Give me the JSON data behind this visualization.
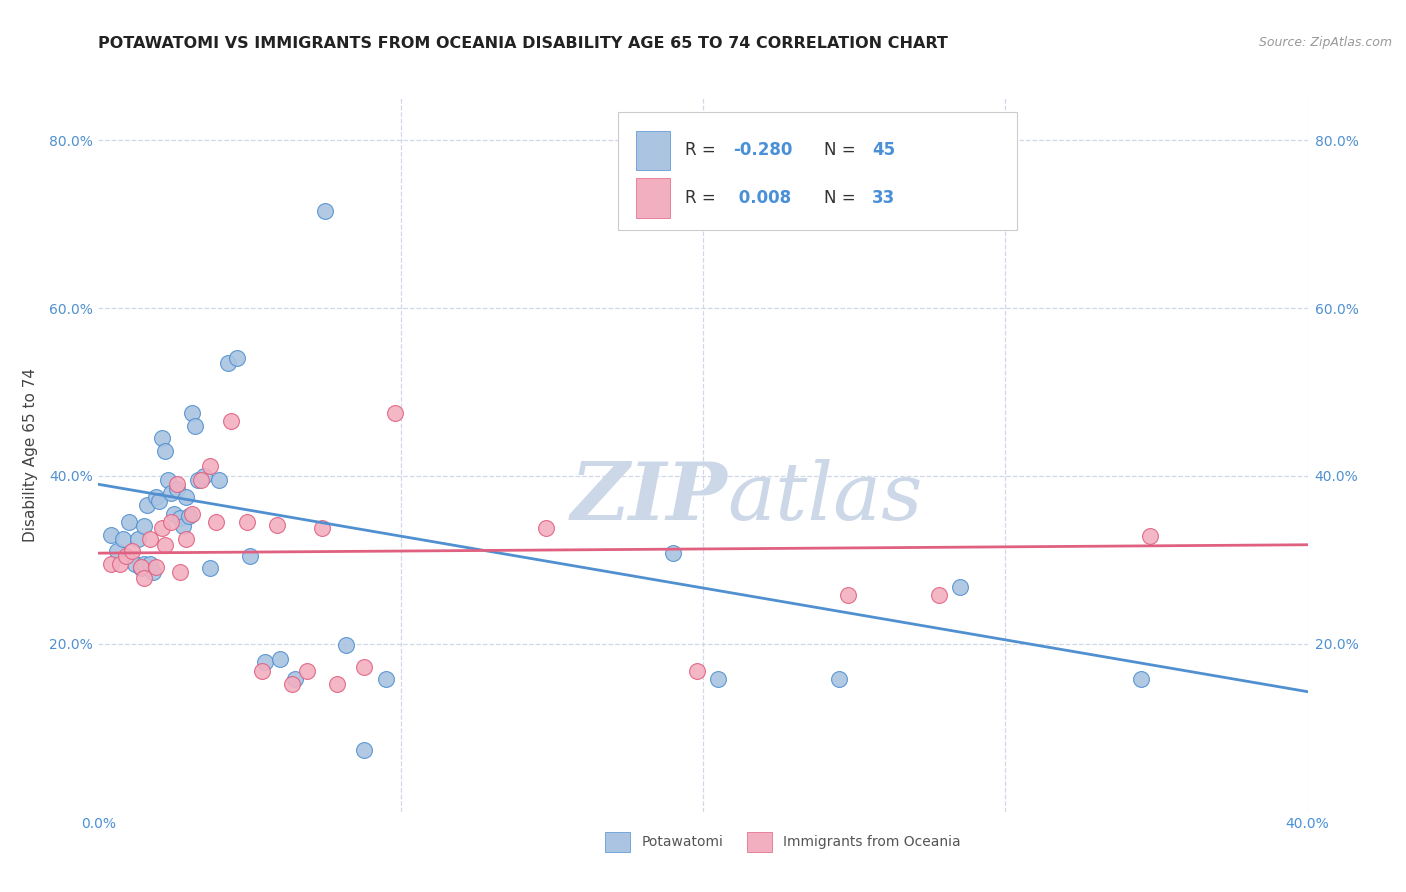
{
  "title": "POTAWATOMI VS IMMIGRANTS FROM OCEANIA DISABILITY AGE 65 TO 74 CORRELATION CHART",
  "source": "Source: ZipAtlas.com",
  "ylabel": "Disability Age 65 to 74",
  "xlim": [
    0.0,
    0.4
  ],
  "ylim": [
    0.0,
    0.85
  ],
  "color_blue": "#aac4e2",
  "color_pink": "#f2afc0",
  "line_blue": "#5090d0",
  "line_pink": "#e06080",
  "legend_text_color": "#4a90d9",
  "grid_color": "#d0d8e8",
  "watermark_color": "#ccd8e8",
  "potawatomi_x": [
    0.004,
    0.006,
    0.008,
    0.01,
    0.012,
    0.013,
    0.014,
    0.015,
    0.015,
    0.016,
    0.017,
    0.018,
    0.019,
    0.02,
    0.021,
    0.022,
    0.023,
    0.024,
    0.025,
    0.026,
    0.027,
    0.028,
    0.029,
    0.03,
    0.031,
    0.032,
    0.033,
    0.035,
    0.037,
    0.04,
    0.043,
    0.046,
    0.05,
    0.055,
    0.06,
    0.065,
    0.075,
    0.082,
    0.088,
    0.095,
    0.19,
    0.205,
    0.245,
    0.285,
    0.345
  ],
  "potawatomi_y": [
    0.33,
    0.31,
    0.325,
    0.345,
    0.295,
    0.325,
    0.29,
    0.34,
    0.295,
    0.365,
    0.295,
    0.285,
    0.375,
    0.37,
    0.445,
    0.43,
    0.395,
    0.38,
    0.355,
    0.385,
    0.35,
    0.34,
    0.375,
    0.352,
    0.475,
    0.46,
    0.395,
    0.4,
    0.29,
    0.395,
    0.535,
    0.54,
    0.305,
    0.178,
    0.182,
    0.158,
    0.715,
    0.198,
    0.073,
    0.158,
    0.308,
    0.158,
    0.158,
    0.268,
    0.158
  ],
  "oceania_x": [
    0.004,
    0.007,
    0.009,
    0.011,
    0.014,
    0.015,
    0.017,
    0.019,
    0.021,
    0.022,
    0.024,
    0.026,
    0.027,
    0.029,
    0.031,
    0.034,
    0.037,
    0.039,
    0.044,
    0.049,
    0.054,
    0.059,
    0.064,
    0.069,
    0.074,
    0.079,
    0.088,
    0.098,
    0.148,
    0.198,
    0.248,
    0.278,
    0.348
  ],
  "oceania_y": [
    0.295,
    0.295,
    0.305,
    0.31,
    0.292,
    0.278,
    0.325,
    0.292,
    0.338,
    0.318,
    0.345,
    0.39,
    0.285,
    0.325,
    0.355,
    0.395,
    0.412,
    0.345,
    0.465,
    0.345,
    0.168,
    0.342,
    0.152,
    0.168,
    0.338,
    0.152,
    0.172,
    0.475,
    0.338,
    0.168,
    0.258,
    0.258,
    0.328
  ],
  "blue_line_x": [
    0.0,
    0.4
  ],
  "blue_line_y": [
    0.39,
    0.143
  ],
  "pink_line_x": [
    0.0,
    0.4
  ],
  "pink_line_y": [
    0.308,
    0.318
  ]
}
